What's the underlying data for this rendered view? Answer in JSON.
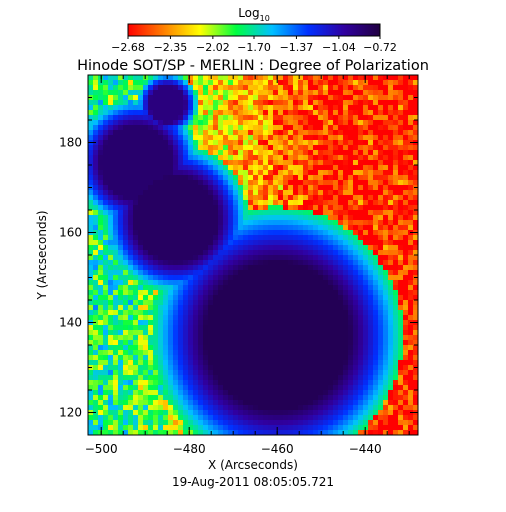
{
  "chart_data": {
    "type": "heatmap",
    "title": "Hinode SOT/SP - MERLIN : Degree of Polarization",
    "xlabel": "X (Arcseconds)",
    "ylabel": "Y (Arcseconds)",
    "footer": "19-Aug-2011 08:05:05.721",
    "xlim": [
      -503,
      -428
    ],
    "ylim": [
      115,
      195
    ],
    "x_ticks": [
      -500,
      -480,
      -460,
      -440
    ],
    "x_tick_labels": [
      "−500",
      "−480",
      "−460",
      "−440"
    ],
    "y_ticks": [
      120,
      140,
      160,
      180
    ],
    "y_tick_labels": [
      "120",
      "140",
      "160",
      "180"
    ],
    "colorbar": {
      "label_main": "Log",
      "label_sub": "10",
      "range": [
        -2.68,
        -0.72
      ],
      "ticks": [
        -2.68,
        -2.35,
        -2.02,
        -1.7,
        -1.37,
        -1.04,
        -0.72
      ],
      "tick_labels": [
        "−2.68",
        "−2.35",
        "−2.02",
        "−1.70",
        "−1.37",
        "−1.04",
        "−0.72"
      ],
      "colormap": [
        "#ff0000",
        "#ff8000",
        "#ffff00",
        "#00ff40",
        "#00c0ff",
        "#0030ff",
        "#3000a0",
        "#200040"
      ]
    },
    "features": [
      {
        "kind": "pore",
        "x": -485,
        "y": 188.5,
        "radius": 3.2,
        "value": -0.9
      },
      {
        "kind": "umbra",
        "x": -492,
        "y": 175.5,
        "radius": 6.5,
        "value": -0.85
      },
      {
        "kind": "umbra",
        "x": -483,
        "y": 163,
        "radius": 7.5,
        "value": -0.82
      },
      {
        "kind": "umbra",
        "x": -460,
        "y": 137,
        "radius": 13,
        "value": -0.78
      }
    ],
    "background_gradient": {
      "low_value": -2.6,
      "high_value": -1.8,
      "direction": "left-to-right"
    }
  }
}
